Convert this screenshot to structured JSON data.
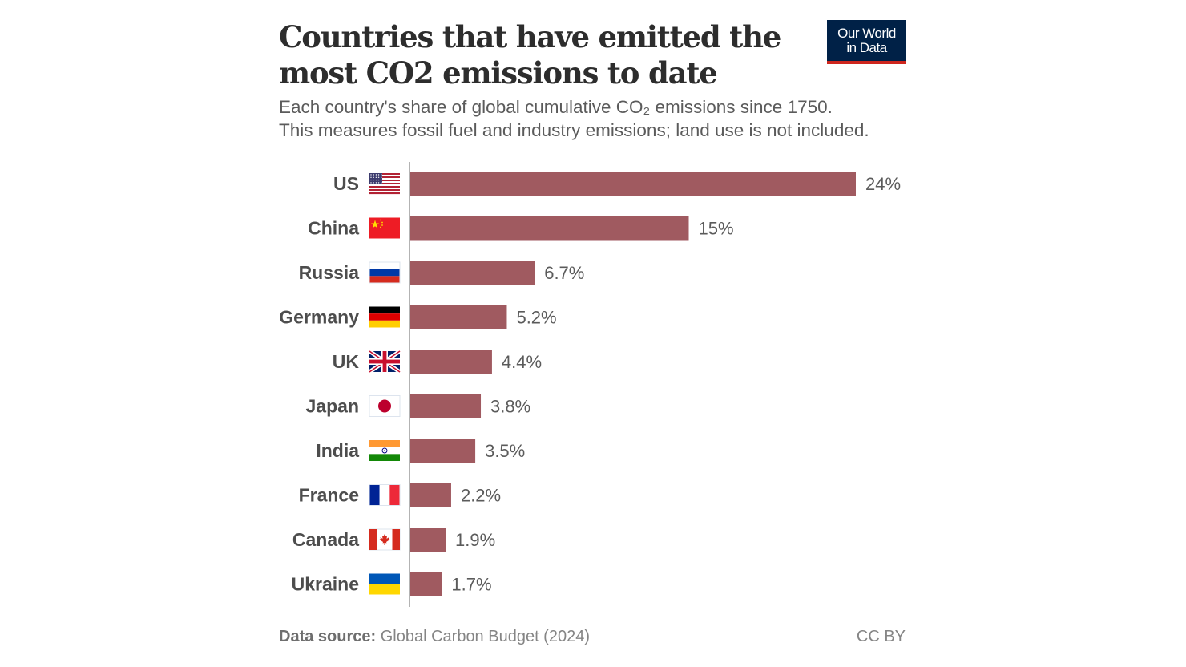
{
  "header": {
    "title_line1": "Countries that have emitted the",
    "title_line2": "most CO2 emissions to date",
    "subtitle_line1": "Each country's share of global cumulative CO₂ emissions since 1750.",
    "subtitle_line2": "This measures fossil fuel and industry emissions; land use is not included.",
    "logo_line1": "Our World",
    "logo_line2": "in Data"
  },
  "footer": {
    "source_label": "Data source:",
    "source_value": "Global Carbon Budget (2024)",
    "license": "CC BY"
  },
  "colors": {
    "bar": "#a05a60",
    "axis": "#9a9a9a",
    "label": "#4d4d4d",
    "value_label": "#5b5b5b",
    "logo_bg": "#002147",
    "logo_accent": "#ce261e"
  },
  "chart_data": {
    "type": "bar",
    "orientation": "horizontal",
    "title": "Countries that have emitted the most CO2 emissions to date",
    "subtitle": "Each country's share of global cumulative CO₂ emissions since 1750. This measures fossil fuel and industry emissions; land use is not included.",
    "xlabel": "",
    "ylabel": "",
    "unit": "%",
    "xlim": [
      0,
      24
    ],
    "grid": false,
    "categories": [
      "US",
      "China",
      "Russia",
      "Germany",
      "UK",
      "Japan",
      "India",
      "France",
      "Canada",
      "Ukraine"
    ],
    "flags": [
      "flag-us",
      "flag-china",
      "flag-russia",
      "flag-germany",
      "flag-uk",
      "flag-japan",
      "flag-india",
      "flag-france",
      "flag-canada",
      "flag-ukraine"
    ],
    "values": [
      24,
      15,
      6.7,
      5.2,
      4.4,
      3.8,
      3.5,
      2.2,
      1.9,
      1.7
    ],
    "value_labels": [
      "24%",
      "15%",
      "6.7%",
      "5.2%",
      "4.4%",
      "3.8%",
      "3.5%",
      "2.2%",
      "1.9%",
      "1.7%"
    ]
  }
}
